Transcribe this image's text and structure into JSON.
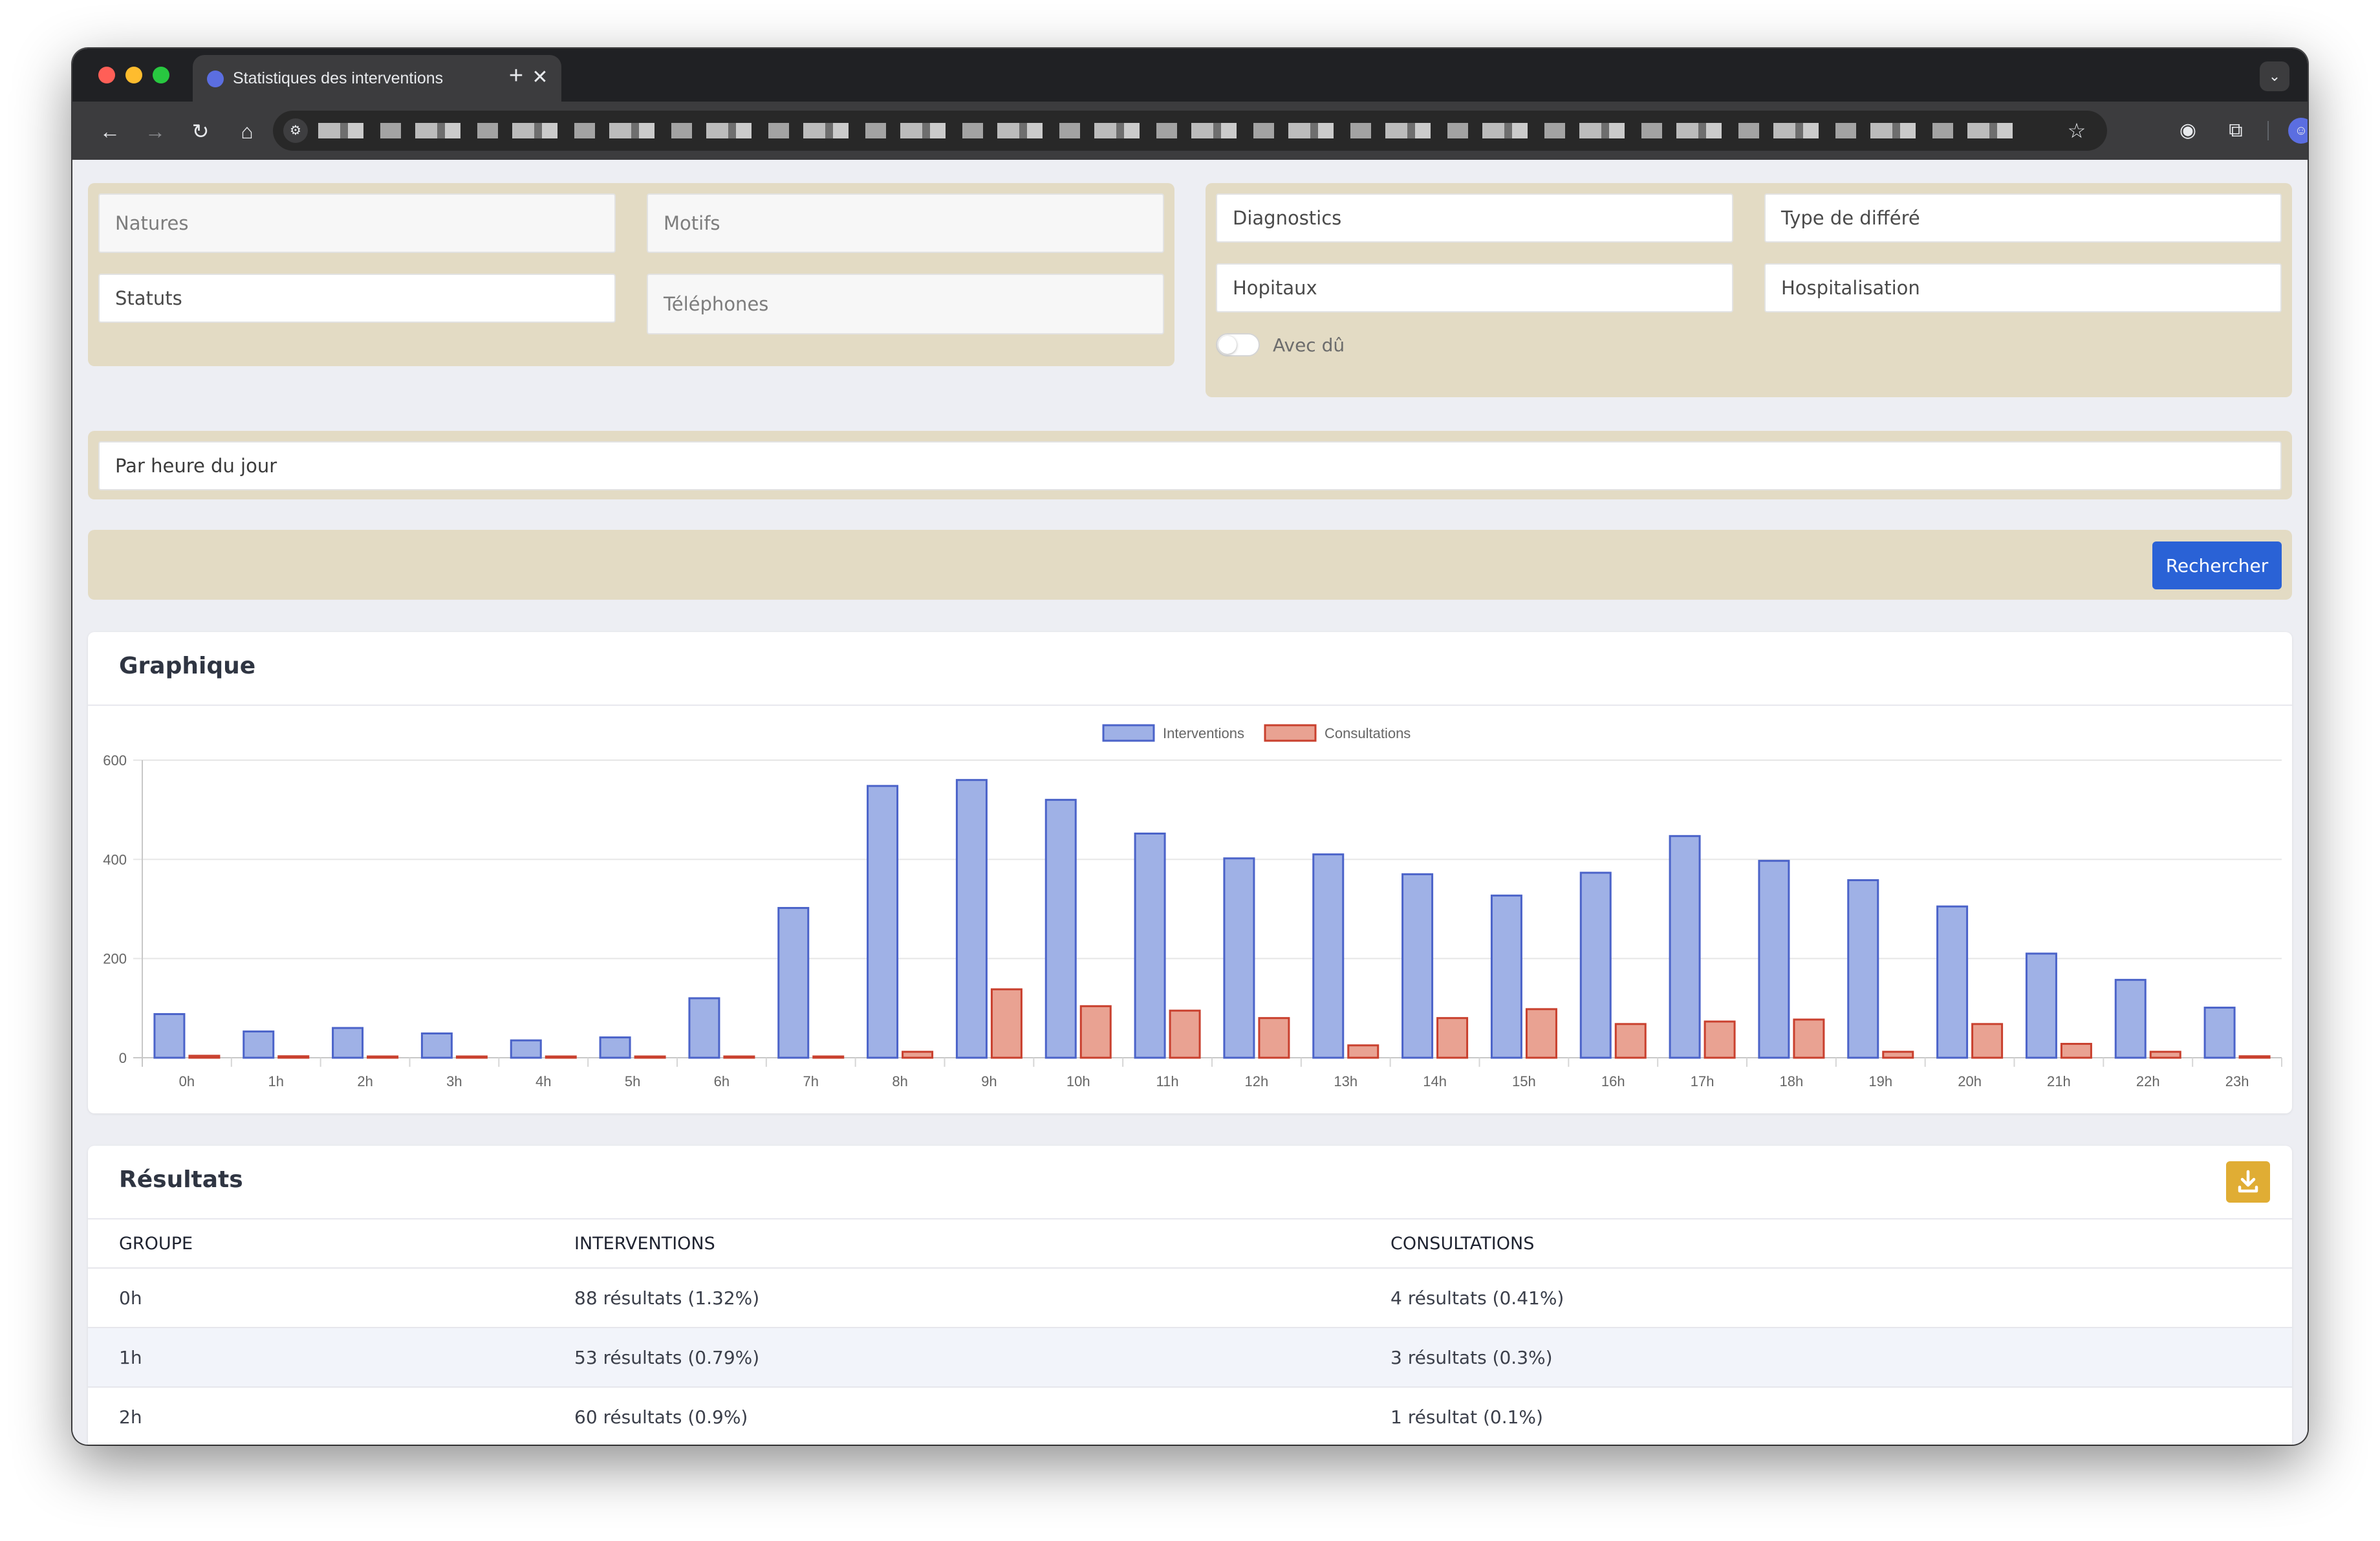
{
  "browser": {
    "tab_title": "Statistiques des interventions",
    "url": "",
    "colors": {
      "tab_bar": "#202124",
      "toolbar": "#3c3c3e"
    }
  },
  "filters": {
    "natures_placeholder": "Natures",
    "motifs_placeholder": "Motifs",
    "statuts_placeholder": "Statuts",
    "telephones_placeholder": "Téléphones",
    "diagnostics_placeholder": "Diagnostics",
    "type_differe_placeholder": "Type de différé",
    "hopitaux_placeholder": "Hopitaux",
    "hospitalisation_placeholder": "Hospitalisation",
    "avec_du_label": "Avec dû",
    "avec_du_checked": false,
    "grouping_value": "Par heure du jour",
    "search_label": "Rechercher"
  },
  "chart_card": {
    "title": "Graphique"
  },
  "chart_data": {
    "type": "bar",
    "categories": [
      "0h",
      "1h",
      "2h",
      "3h",
      "4h",
      "5h",
      "6h",
      "7h",
      "8h",
      "9h",
      "10h",
      "11h",
      "12h",
      "13h",
      "14h",
      "15h",
      "16h",
      "17h",
      "18h",
      "19h",
      "20h",
      "21h",
      "22h",
      "23h"
    ],
    "series": [
      {
        "name": "Interventions",
        "color": "#9fb1e6",
        "border": "#4b63c9",
        "values": [
          88,
          53,
          60,
          49,
          35,
          41,
          120,
          302,
          548,
          560,
          520,
          452,
          402,
          410,
          370,
          327,
          373,
          447,
          397,
          358,
          305,
          210,
          157,
          101
        ]
      },
      {
        "name": "Consultations",
        "color": "#e9a292",
        "border": "#c9402e",
        "values": [
          4,
          3,
          1,
          0,
          0,
          0,
          0,
          0,
          12,
          138,
          104,
          95,
          80,
          25,
          80,
          98,
          68,
          73,
          77,
          12,
          68,
          28,
          12,
          3
        ]
      }
    ],
    "ylim": [
      0,
      600
    ],
    "yticks": [
      0,
      200,
      400,
      600
    ],
    "legend": "top-center",
    "grid": true
  },
  "results_card": {
    "title": "Résultats",
    "download_icon": "download-icon",
    "columns": [
      "GROUPE",
      "INTERVENTIONS",
      "CONSULTATIONS"
    ],
    "rows": [
      {
        "group": "0h",
        "interventions": "88 résultats (1.32%)",
        "consultations": "4 résultats (0.41%)"
      },
      {
        "group": "1h",
        "interventions": "53 résultats (0.79%)",
        "consultations": "3 résultats (0.3%)"
      },
      {
        "group": "2h",
        "interventions": "60 résultats (0.9%)",
        "consultations": "1 résultat (0.1%)"
      }
    ]
  }
}
